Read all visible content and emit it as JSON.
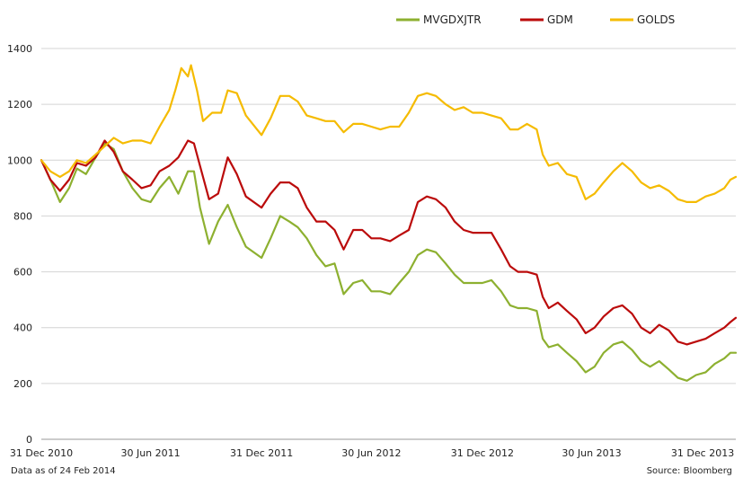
{
  "chart_data": {
    "type": "line",
    "title": "",
    "xlabel": "",
    "ylabel": "",
    "ylim": [
      0,
      1400
    ],
    "yticks": [
      0,
      200,
      400,
      600,
      800,
      1000,
      1200,
      1400
    ],
    "xlim": [
      "2010-12-31",
      "2014-02-24"
    ],
    "xticks": [
      {
        "date": "2010-12-31",
        "label": "31 Dec 2010"
      },
      {
        "date": "2011-06-30",
        "label": "30 Jun 2011"
      },
      {
        "date": "2011-12-31",
        "label": "31 Dec 2011"
      },
      {
        "date": "2012-06-30",
        "label": "30 Jun 2012"
      },
      {
        "date": "2012-12-31",
        "label": "31 Dec 2012"
      },
      {
        "date": "2013-06-30",
        "label": "30 Jun 2013"
      },
      {
        "date": "2013-12-31",
        "label": "31 Dec 2013"
      }
    ],
    "grid": "horizontal",
    "legend": "top",
    "series": [
      {
        "name": "MVGDXJTR",
        "color": "#8db030",
        "points": [
          [
            "2010-12-31",
            1000
          ],
          [
            "2011-01-15",
            930
          ],
          [
            "2011-01-31",
            850
          ],
          [
            "2011-02-15",
            900
          ],
          [
            "2011-02-28",
            970
          ],
          [
            "2011-03-15",
            950
          ],
          [
            "2011-03-31",
            1010
          ],
          [
            "2011-04-15",
            1060
          ],
          [
            "2011-04-30",
            1040
          ],
          [
            "2011-05-15",
            960
          ],
          [
            "2011-05-31",
            900
          ],
          [
            "2011-06-15",
            860
          ],
          [
            "2011-06-30",
            850
          ],
          [
            "2011-07-15",
            900
          ],
          [
            "2011-07-31",
            940
          ],
          [
            "2011-08-15",
            880
          ],
          [
            "2011-08-31",
            960
          ],
          [
            "2011-09-10",
            960
          ],
          [
            "2011-09-20",
            830
          ],
          [
            "2011-10-05",
            700
          ],
          [
            "2011-10-20",
            780
          ],
          [
            "2011-11-05",
            840
          ],
          [
            "2011-11-20",
            760
          ],
          [
            "2011-12-05",
            690
          ],
          [
            "2011-12-31",
            650
          ],
          [
            "2012-01-15",
            720
          ],
          [
            "2012-01-31",
            800
          ],
          [
            "2012-02-15",
            780
          ],
          [
            "2012-02-29",
            760
          ],
          [
            "2012-03-15",
            720
          ],
          [
            "2012-03-31",
            660
          ],
          [
            "2012-04-15",
            620
          ],
          [
            "2012-04-30",
            630
          ],
          [
            "2012-05-15",
            520
          ],
          [
            "2012-05-31",
            560
          ],
          [
            "2012-06-15",
            570
          ],
          [
            "2012-06-30",
            530
          ],
          [
            "2012-07-15",
            530
          ],
          [
            "2012-07-31",
            520
          ],
          [
            "2012-08-15",
            560
          ],
          [
            "2012-08-31",
            600
          ],
          [
            "2012-09-15",
            660
          ],
          [
            "2012-09-30",
            680
          ],
          [
            "2012-10-15",
            670
          ],
          [
            "2012-10-31",
            630
          ],
          [
            "2012-11-15",
            590
          ],
          [
            "2012-11-30",
            560
          ],
          [
            "2012-12-15",
            560
          ],
          [
            "2012-12-31",
            560
          ],
          [
            "2013-01-15",
            570
          ],
          [
            "2013-01-31",
            530
          ],
          [
            "2013-02-15",
            480
          ],
          [
            "2013-02-28",
            470
          ],
          [
            "2013-03-15",
            470
          ],
          [
            "2013-03-31",
            460
          ],
          [
            "2013-04-10",
            360
          ],
          [
            "2013-04-20",
            330
          ],
          [
            "2013-05-05",
            340
          ],
          [
            "2013-05-20",
            310
          ],
          [
            "2013-06-05",
            280
          ],
          [
            "2013-06-20",
            240
          ],
          [
            "2013-07-05",
            260
          ],
          [
            "2013-07-20",
            310
          ],
          [
            "2013-08-05",
            340
          ],
          [
            "2013-08-20",
            350
          ],
          [
            "2013-09-05",
            320
          ],
          [
            "2013-09-20",
            280
          ],
          [
            "2013-10-05",
            260
          ],
          [
            "2013-10-20",
            280
          ],
          [
            "2013-11-05",
            250
          ],
          [
            "2013-11-20",
            220
          ],
          [
            "2013-12-05",
            210
          ],
          [
            "2013-12-20",
            230
          ],
          [
            "2014-01-05",
            240
          ],
          [
            "2014-01-20",
            270
          ],
          [
            "2014-02-05",
            290
          ],
          [
            "2014-02-15",
            310
          ],
          [
            "2014-02-24",
            310
          ]
        ]
      },
      {
        "name": "GDM",
        "color": "#bb0b0b",
        "points": [
          [
            "2010-12-31",
            1000
          ],
          [
            "2011-01-15",
            930
          ],
          [
            "2011-01-31",
            890
          ],
          [
            "2011-02-15",
            930
          ],
          [
            "2011-02-28",
            990
          ],
          [
            "2011-03-15",
            980
          ],
          [
            "2011-03-31",
            1010
          ],
          [
            "2011-04-15",
            1070
          ],
          [
            "2011-04-30",
            1030
          ],
          [
            "2011-05-15",
            960
          ],
          [
            "2011-05-31",
            930
          ],
          [
            "2011-06-15",
            900
          ],
          [
            "2011-06-30",
            910
          ],
          [
            "2011-07-15",
            960
          ],
          [
            "2011-07-31",
            980
          ],
          [
            "2011-08-15",
            1010
          ],
          [
            "2011-08-31",
            1070
          ],
          [
            "2011-09-10",
            1060
          ],
          [
            "2011-09-20",
            980
          ],
          [
            "2011-10-05",
            860
          ],
          [
            "2011-10-20",
            880
          ],
          [
            "2011-11-05",
            1010
          ],
          [
            "2011-11-20",
            950
          ],
          [
            "2011-12-05",
            870
          ],
          [
            "2011-12-31",
            830
          ],
          [
            "2012-01-15",
            880
          ],
          [
            "2012-01-31",
            920
          ],
          [
            "2012-02-15",
            920
          ],
          [
            "2012-02-29",
            900
          ],
          [
            "2012-03-15",
            830
          ],
          [
            "2012-03-31",
            780
          ],
          [
            "2012-04-15",
            780
          ],
          [
            "2012-04-30",
            750
          ],
          [
            "2012-05-15",
            680
          ],
          [
            "2012-05-31",
            750
          ],
          [
            "2012-06-15",
            750
          ],
          [
            "2012-06-30",
            720
          ],
          [
            "2012-07-15",
            720
          ],
          [
            "2012-07-31",
            710
          ],
          [
            "2012-08-15",
            730
          ],
          [
            "2012-08-31",
            750
          ],
          [
            "2012-09-15",
            850
          ],
          [
            "2012-09-30",
            870
          ],
          [
            "2012-10-15",
            860
          ],
          [
            "2012-10-31",
            830
          ],
          [
            "2012-11-15",
            780
          ],
          [
            "2012-11-30",
            750
          ],
          [
            "2012-12-15",
            740
          ],
          [
            "2012-12-31",
            740
          ],
          [
            "2013-01-15",
            740
          ],
          [
            "2013-01-31",
            680
          ],
          [
            "2013-02-15",
            620
          ],
          [
            "2013-02-28",
            600
          ],
          [
            "2013-03-15",
            600
          ],
          [
            "2013-03-31",
            590
          ],
          [
            "2013-04-10",
            510
          ],
          [
            "2013-04-20",
            470
          ],
          [
            "2013-05-05",
            490
          ],
          [
            "2013-05-20",
            460
          ],
          [
            "2013-06-05",
            430
          ],
          [
            "2013-06-20",
            380
          ],
          [
            "2013-07-05",
            400
          ],
          [
            "2013-07-20",
            440
          ],
          [
            "2013-08-05",
            470
          ],
          [
            "2013-08-20",
            480
          ],
          [
            "2013-09-05",
            450
          ],
          [
            "2013-09-20",
            400
          ],
          [
            "2013-10-05",
            380
          ],
          [
            "2013-10-20",
            410
          ],
          [
            "2013-11-05",
            390
          ],
          [
            "2013-11-20",
            350
          ],
          [
            "2013-12-05",
            340
          ],
          [
            "2013-12-20",
            350
          ],
          [
            "2014-01-05",
            360
          ],
          [
            "2014-01-20",
            380
          ],
          [
            "2014-02-05",
            400
          ],
          [
            "2014-02-15",
            420
          ],
          [
            "2014-02-24",
            435
          ]
        ]
      },
      {
        "name": "GOLDS",
        "color": "#f5bb00",
        "points": [
          [
            "2010-12-31",
            1000
          ],
          [
            "2011-01-15",
            960
          ],
          [
            "2011-01-31",
            940
          ],
          [
            "2011-02-15",
            960
          ],
          [
            "2011-02-28",
            1000
          ],
          [
            "2011-03-15",
            990
          ],
          [
            "2011-03-31",
            1020
          ],
          [
            "2011-04-15",
            1050
          ],
          [
            "2011-04-30",
            1080
          ],
          [
            "2011-05-15",
            1060
          ],
          [
            "2011-05-31",
            1070
          ],
          [
            "2011-06-15",
            1070
          ],
          [
            "2011-06-30",
            1060
          ],
          [
            "2011-07-15",
            1120
          ],
          [
            "2011-07-31",
            1180
          ],
          [
            "2011-08-10",
            1250
          ],
          [
            "2011-08-20",
            1330
          ],
          [
            "2011-08-31",
            1300
          ],
          [
            "2011-09-05",
            1340
          ],
          [
            "2011-09-15",
            1250
          ],
          [
            "2011-09-25",
            1140
          ],
          [
            "2011-10-10",
            1170
          ],
          [
            "2011-10-25",
            1170
          ],
          [
            "2011-11-05",
            1250
          ],
          [
            "2011-11-20",
            1240
          ],
          [
            "2011-12-05",
            1160
          ],
          [
            "2011-12-31",
            1090
          ],
          [
            "2012-01-15",
            1150
          ],
          [
            "2012-01-31",
            1230
          ],
          [
            "2012-02-15",
            1230
          ],
          [
            "2012-02-29",
            1210
          ],
          [
            "2012-03-15",
            1160
          ],
          [
            "2012-03-31",
            1150
          ],
          [
            "2012-04-15",
            1140
          ],
          [
            "2012-04-30",
            1140
          ],
          [
            "2012-05-15",
            1100
          ],
          [
            "2012-05-31",
            1130
          ],
          [
            "2012-06-15",
            1130
          ],
          [
            "2012-06-30",
            1120
          ],
          [
            "2012-07-15",
            1110
          ],
          [
            "2012-07-31",
            1120
          ],
          [
            "2012-08-15",
            1120
          ],
          [
            "2012-08-31",
            1170
          ],
          [
            "2012-09-15",
            1230
          ],
          [
            "2012-09-30",
            1240
          ],
          [
            "2012-10-15",
            1230
          ],
          [
            "2012-10-31",
            1200
          ],
          [
            "2012-11-15",
            1180
          ],
          [
            "2012-11-30",
            1190
          ],
          [
            "2012-12-15",
            1170
          ],
          [
            "2012-12-31",
            1170
          ],
          [
            "2013-01-15",
            1160
          ],
          [
            "2013-01-31",
            1150
          ],
          [
            "2013-02-15",
            1110
          ],
          [
            "2013-02-28",
            1110
          ],
          [
            "2013-03-15",
            1130
          ],
          [
            "2013-03-31",
            1110
          ],
          [
            "2013-04-10",
            1020
          ],
          [
            "2013-04-20",
            980
          ],
          [
            "2013-05-05",
            990
          ],
          [
            "2013-05-20",
            950
          ],
          [
            "2013-06-05",
            940
          ],
          [
            "2013-06-20",
            860
          ],
          [
            "2013-07-05",
            880
          ],
          [
            "2013-07-20",
            920
          ],
          [
            "2013-08-05",
            960
          ],
          [
            "2013-08-20",
            990
          ],
          [
            "2013-09-05",
            960
          ],
          [
            "2013-09-20",
            920
          ],
          [
            "2013-10-05",
            900
          ],
          [
            "2013-10-20",
            910
          ],
          [
            "2013-11-05",
            890
          ],
          [
            "2013-11-20",
            860
          ],
          [
            "2013-12-05",
            850
          ],
          [
            "2013-12-20",
            850
          ],
          [
            "2014-01-05",
            870
          ],
          [
            "2014-01-20",
            880
          ],
          [
            "2014-02-05",
            900
          ],
          [
            "2014-02-15",
            930
          ],
          [
            "2014-02-24",
            940
          ]
        ]
      }
    ]
  },
  "footer": {
    "left": "Data as of 24 Feb 2014",
    "right": "Source: Bloomberg"
  }
}
